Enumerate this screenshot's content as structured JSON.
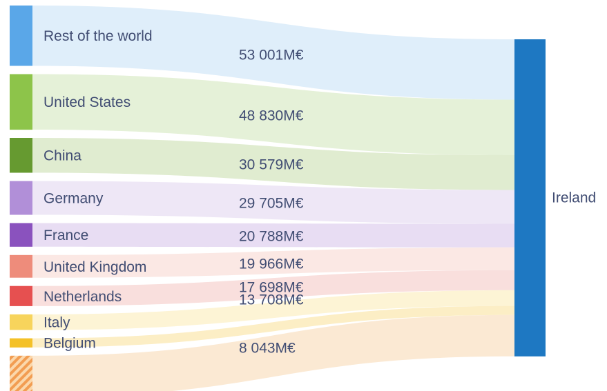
{
  "chart_data": {
    "type": "sankey",
    "title": "",
    "unit": "M€",
    "orientation": "left-to-right",
    "target": {
      "name": "Ireland",
      "color": "#1E78C2"
    },
    "flows": [
      {
        "source": "Rest of the world",
        "value": 53001,
        "value_label": "53 001M€",
        "node_color": "#5AA7E8",
        "flow_color": "#D8EAF9"
      },
      {
        "source": "United States",
        "value": 48830,
        "value_label": "48 830M€",
        "node_color": "#8DC44A",
        "flow_color": "#DFEED0"
      },
      {
        "source": "China",
        "value": 30579,
        "value_label": "30 579M€",
        "node_color": "#669A30",
        "flow_color": "#D9E8C6"
      },
      {
        "source": "Germany",
        "value": 29705,
        "value_label": "29 705M€",
        "node_color": "#B18FD8",
        "flow_color": "#EAE2F4"
      },
      {
        "source": "France",
        "value": 20788,
        "value_label": "20 788M€",
        "node_color": "#8A52BE",
        "flow_color": "#E3D6F0"
      },
      {
        "source": "United Kingdom",
        "value": 19966,
        "value_label": "19 966M€",
        "node_color": "#EE8C7B",
        "flow_color": "#FAE3DE"
      },
      {
        "source": "Netherlands",
        "value": 17698,
        "value_label": "17 698M€",
        "node_color": "#E65050",
        "flow_color": "#F8D8D5"
      },
      {
        "source": "Italy",
        "value": 13708,
        "value_label": "13 708M€",
        "node_color": "#F7D45C",
        "flow_color": "#FCF1CC"
      },
      {
        "source": "Belgium",
        "value": 8043,
        "value_label": "8 043M€",
        "node_color": "#F4C127",
        "flow_color": "#FBEAB8"
      },
      {
        "source": "",
        "truncated": true,
        "node_color": "stripes",
        "flow_color": "#FAE4C9"
      }
    ]
  },
  "text_color": "#414D73",
  "background": "#FFFFFF"
}
